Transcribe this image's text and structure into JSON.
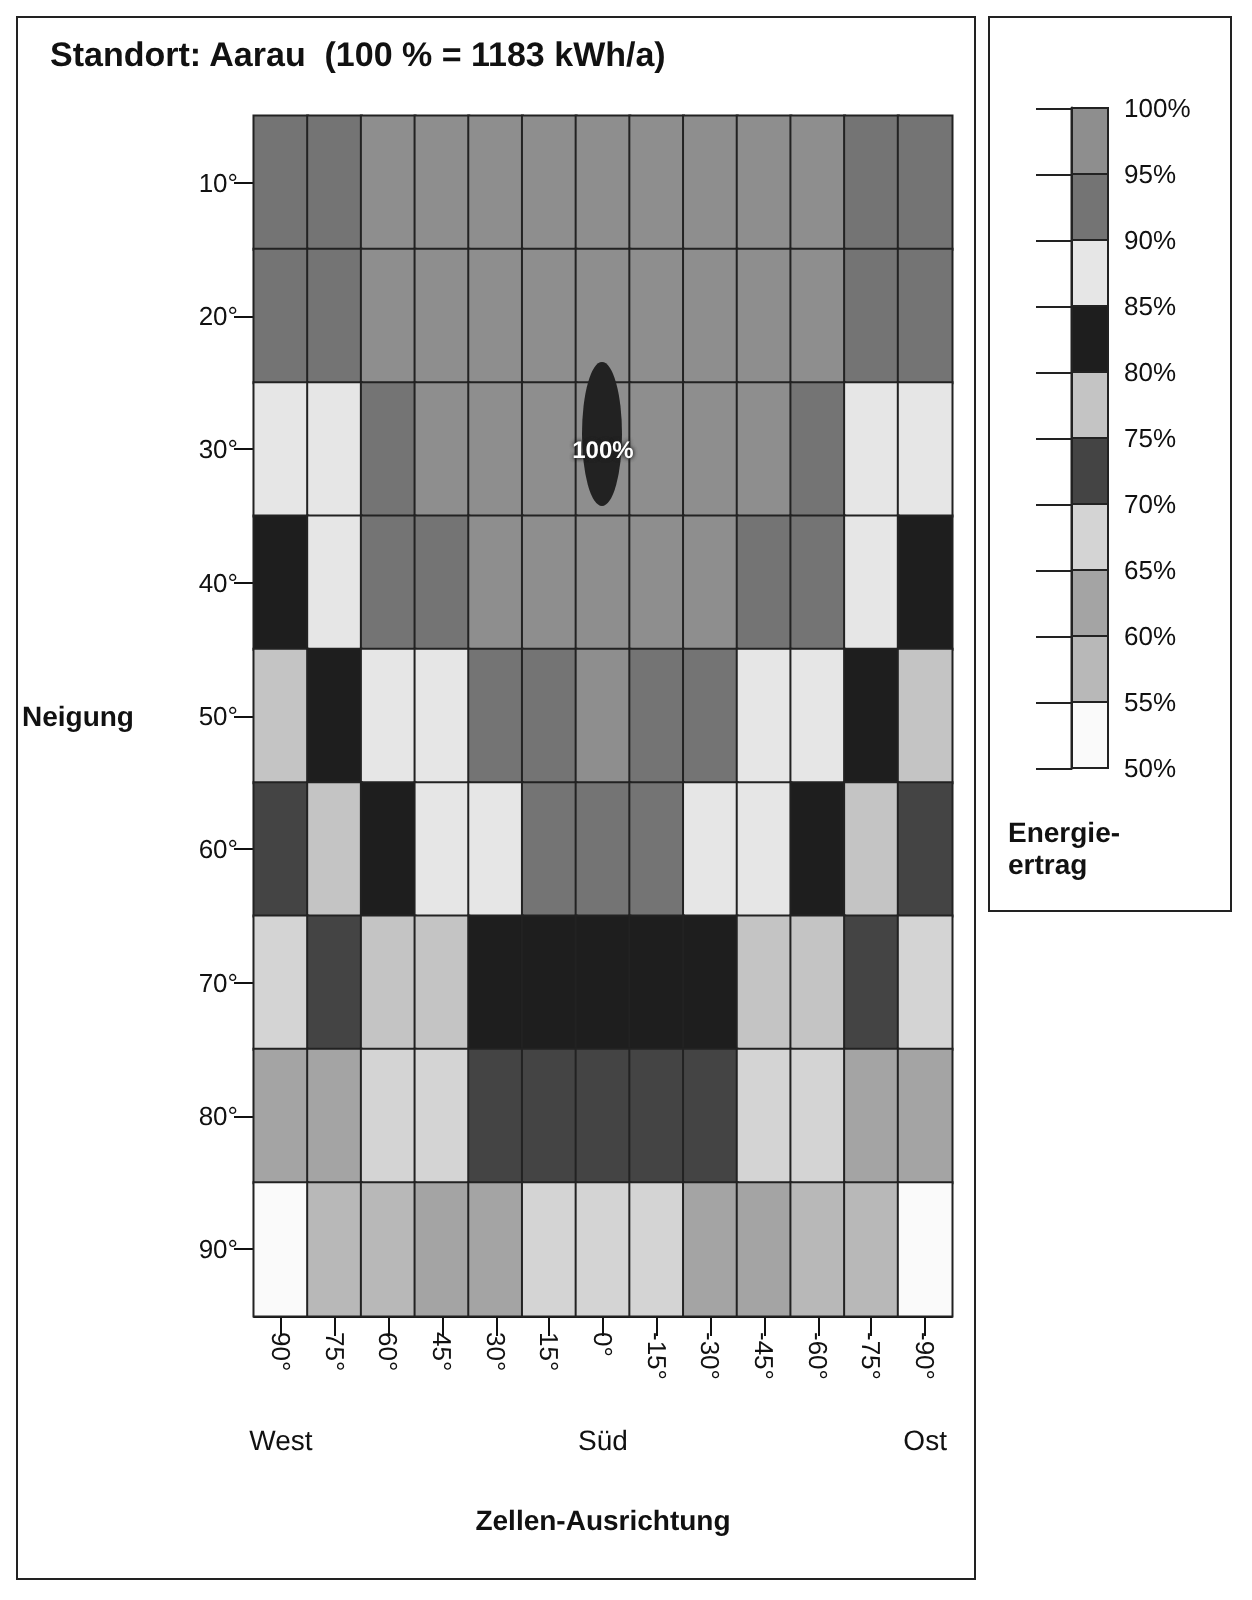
{
  "chart_data": {
    "type": "heatmap",
    "title": "Standort: Aarau  (100 % = 1183 kWh/a)",
    "xlabel": "Zellen-Ausrichtung",
    "ylabel": "Neigung",
    "clabel": "Energie-ertrag",
    "categories": [
      "90°",
      "75°",
      "60°",
      "45°",
      "30°",
      "15°",
      "0°",
      "-15°",
      "-30°",
      "-45°",
      "-60°",
      "-75°",
      "-90°"
    ],
    "y_categories": [
      "10°",
      "20°",
      "30°",
      "40°",
      "50°",
      "60°",
      "70°",
      "80°",
      "90°"
    ],
    "cells": [
      [
        93,
        93,
        95.5,
        97,
        97,
        97,
        97,
        97,
        97,
        97,
        95.5,
        93,
        93
      ],
      [
        91,
        93,
        95.5,
        97,
        98,
        98,
        98.5,
        98,
        98,
        97,
        95.5,
        93,
        91
      ],
      [
        87,
        88,
        92,
        95.5,
        97.5,
        98,
        97.5,
        98,
        97.5,
        95.5,
        92,
        88,
        87
      ],
      [
        82,
        86,
        90.5,
        93,
        95.5,
        97,
        98,
        97,
        95.5,
        93,
        90.5,
        86,
        82
      ],
      [
        78,
        82,
        86,
        88,
        92,
        93,
        95.5,
        93,
        92,
        88,
        86,
        82,
        78
      ],
      [
        73,
        77,
        81,
        85.5,
        88,
        90.5,
        91,
        90.5,
        88,
        85.5,
        81,
        77,
        73
      ],
      [
        67.5,
        71.5,
        75.5,
        78,
        81,
        83,
        83,
        83,
        81,
        78,
        75.5,
        71.5,
        67.5
      ],
      [
        60.5,
        63,
        67,
        68,
        72,
        73,
        73,
        73,
        72,
        68,
        67,
        63,
        60.5
      ],
      [
        53,
        56,
        58,
        62,
        63,
        65.5,
        66,
        65.5,
        63,
        62,
        58,
        56,
        53
      ]
    ],
    "clim": [
      50,
      100
    ],
    "cticks": [
      {
        "value": 50,
        "label": "50%"
      },
      {
        "value": 55,
        "label": "55%"
      },
      {
        "value": 60,
        "label": "60%"
      },
      {
        "value": 65,
        "label": "65%"
      },
      {
        "value": 70,
        "label": "70%"
      },
      {
        "value": 75,
        "label": "75%"
      },
      {
        "value": 80,
        "label": "80%"
      },
      {
        "value": 85,
        "label": "85%"
      },
      {
        "value": 90,
        "label": "90%"
      },
      {
        "value": 95,
        "label": "95%"
      },
      {
        "value": 100,
        "label": "100%"
      }
    ],
    "colors": [
      "#fafafa",
      "#b8b8b8",
      "#a4a4a4",
      "#d4d4d4",
      "#444444",
      "#c4c4c4",
      "#1e1e1e",
      "#e6e6e6",
      "#747474",
      "#8e8e8e"
    ],
    "annotations": [
      "100%",
      "West",
      "Süd",
      "Ost"
    ]
  }
}
